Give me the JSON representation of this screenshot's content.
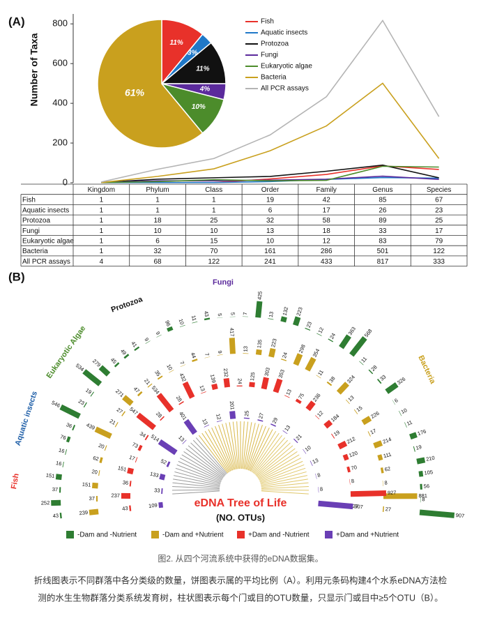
{
  "panel_a": {
    "label": "(A)",
    "chart_data": {
      "type": "line",
      "ylabel": "Number of Taxa",
      "categories": [
        "Kingdom",
        "Phylum",
        "Class",
        "Order",
        "Family",
        "Genus",
        "Species"
      ],
      "ylim": [
        0,
        850
      ],
      "yticks": [
        0,
        200,
        400,
        600,
        800
      ],
      "series": [
        {
          "name": "Fish",
          "color": "#e8312a",
          "values": [
            1,
            1,
            1,
            19,
            42,
            85,
            67
          ]
        },
        {
          "name": "Aquatic insects",
          "color": "#1f78c8",
          "values": [
            1,
            1,
            1,
            6,
            17,
            26,
            23
          ]
        },
        {
          "name": "Protozoa",
          "color": "#111111",
          "values": [
            1,
            18,
            25,
            32,
            58,
            89,
            25
          ]
        },
        {
          "name": "Fungi",
          "color": "#5b2a9c",
          "values": [
            1,
            10,
            10,
            13,
            18,
            33,
            17
          ]
        },
        {
          "name": "Eukaryotic algae",
          "color": "#4c8c2b",
          "values": [
            1,
            6,
            15,
            10,
            12,
            83,
            79
          ]
        },
        {
          "name": "Bacteria",
          "color": "#c9a01e",
          "values": [
            1,
            32,
            70,
            161,
            286,
            501,
            122
          ]
        },
        {
          "name": "All PCR assays",
          "color": "#b4b4b4",
          "values": [
            4,
            68,
            122,
            241,
            433,
            817,
            333
          ]
        }
      ],
      "pie": {
        "type": "pie",
        "values": [
          11,
          3,
          11,
          4,
          10,
          61
        ],
        "value_labels": [
          "11%",
          "3%",
          "11%",
          "4%",
          "10%",
          "61%"
        ]
      }
    }
  },
  "panel_b": {
    "label": "(B)",
    "title": "eDNA Tree of Life",
    "subtitle": "(NO. OTUs)",
    "group_labels": [
      "Fish",
      "Aquatic insects",
      "Eukaryotic Algae",
      "Protozoa",
      "Fungi",
      "Bacteria"
    ],
    "rings": [
      {
        "name": "-Dam and -Nutrient",
        "color": "#2e7d32",
        "values": [
          43,
          252,
          37,
          151,
          16,
          16,
          76,
          36,
          546,
          23,
          19,
          534,
          279,
          45,
          49,
          41,
          9,
          9,
          96,
          10,
          11,
          43,
          5,
          5,
          7,
          425,
          13,
          132,
          223,
          23,
          12,
          24,
          363,
          568,
          11,
          28,
          33,
          326,
          6,
          10,
          11,
          176,
          19,
          210,
          105,
          56,
          8,
          907
        ]
      },
      {
        "name": "-Dam and +Nutrient",
        "color": "#c9a01e",
        "values": [
          239,
          37,
          151,
          20,
          62,
          20,
          439,
          21,
          27,
          271,
          47,
          21,
          35,
          10,
          7,
          44,
          7,
          9,
          417,
          13,
          135,
          223,
          24,
          298,
          354,
          11,
          38,
          324,
          13,
          15,
          226,
          17,
          214,
          111,
          62,
          8,
          881,
          27
        ]
      },
      {
        "name": "+Dam and -Nutrient",
        "color": "#e8312a",
        "values": [
          43,
          237,
          36,
          151,
          17,
          73,
          34,
          547,
          28,
          534,
          28,
          432,
          13,
          139,
          232,
          24,
          125,
          303,
          353,
          13,
          75,
          236,
          12,
          184,
          19,
          212,
          120,
          70,
          8,
          927,
          27
        ]
      },
      {
        "name": "+Dam and +Nutrient",
        "color": "#6a3fb5",
        "values": [
          109,
          33,
          133,
          52,
          514,
          13,
          401,
          13,
          12,
          201,
          25,
          27,
          29,
          13,
          21,
          10,
          13,
          8,
          8,
          907
        ]
      }
    ]
  },
  "caption": {
    "title": "图2. 从四个河流系统中获得的eDNA数据集。",
    "lines": [
      "折线图表示不同群落中各分类级的数量，饼图表示属的平均比例（A）。利用元条码构建4个水系eDNA方法检",
      "测的水生生物群落分类系统发育树，柱状图表示每个门或目的OTU数量，只显示门或目中≥5个OTU（B）。"
    ]
  }
}
